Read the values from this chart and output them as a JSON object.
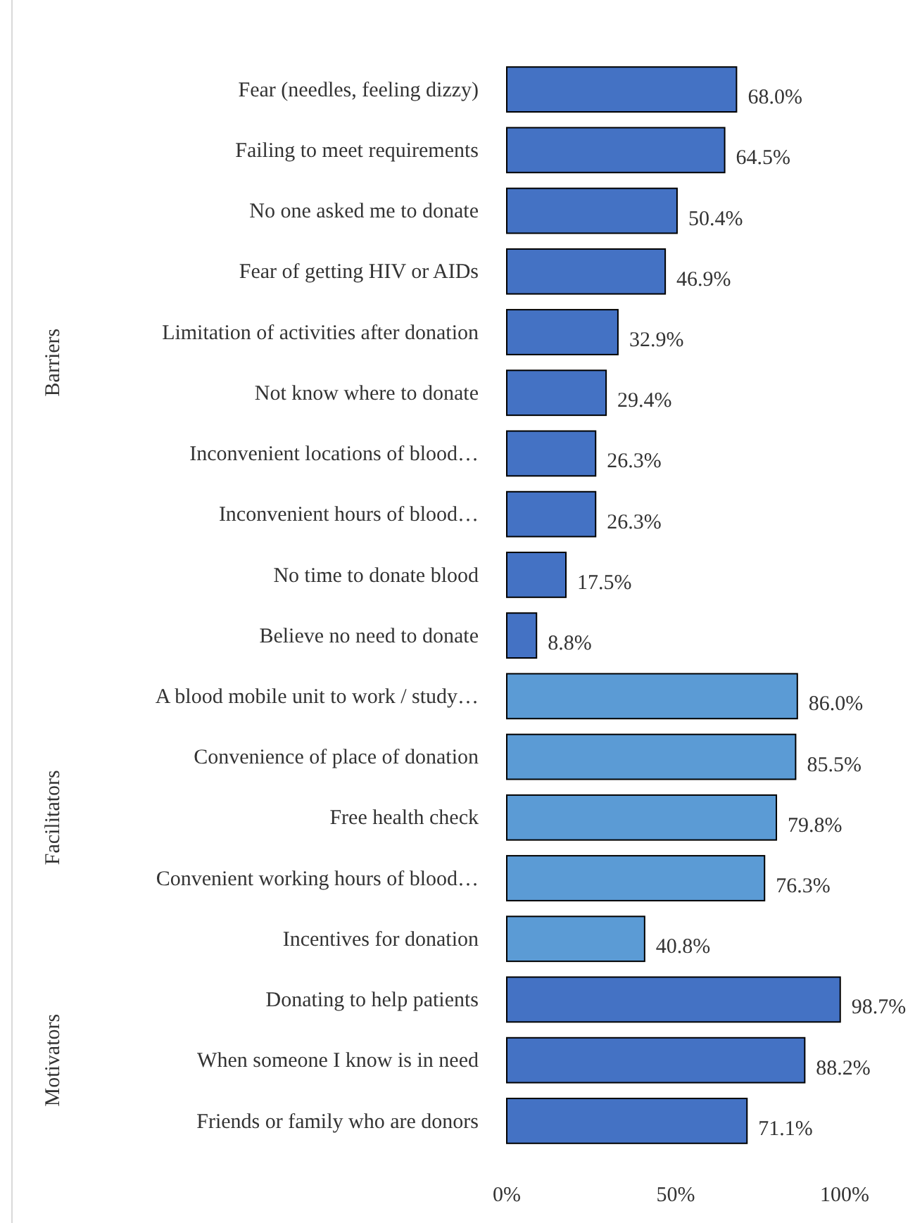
{
  "chart_data": {
    "type": "bar",
    "orientation": "horizontal",
    "categories": [
      "Fear (needles, feeling dizzy)",
      "Failing to meet requirements",
      "No one asked me to donate",
      "Fear of getting HIV or AIDs",
      "Limitation of activities after donation",
      "Not know where to donate",
      "Inconvenient locations of blood…",
      "Inconvenient hours of blood…",
      "No time to donate blood",
      "Believe no need to donate",
      "A blood mobile unit to work / study…",
      "Convenience of place of donation",
      "Free health check",
      "Convenient working hours of blood…",
      "Incentives for donation",
      "Donating to help patients",
      "When someone I know is in need",
      "Friends or family who are donors"
    ],
    "values": [
      68.0,
      64.5,
      50.4,
      46.9,
      32.9,
      29.4,
      26.3,
      26.3,
      17.5,
      8.8,
      86.0,
      85.5,
      79.8,
      76.3,
      40.8,
      98.7,
      88.2,
      71.1
    ],
    "value_labels": [
      "68.0%",
      "64.5%",
      "50.4%",
      "46.9%",
      "32.9%",
      "29.4%",
      "26.3%",
      "26.3%",
      "17.5%",
      "8.8%",
      "86.0%",
      "85.5%",
      "79.8%",
      "76.3%",
      "40.8%",
      "98.7%",
      "88.2%",
      "71.1%"
    ],
    "colors": [
      "#4472c4",
      "#4472c4",
      "#4472c4",
      "#4472c4",
      "#4472c4",
      "#4472c4",
      "#4472c4",
      "#4472c4",
      "#4472c4",
      "#4472c4",
      "#5b9bd5",
      "#5b9bd5",
      "#5b9bd5",
      "#5b9bd5",
      "#5b9bd5",
      "#4472c4",
      "#4472c4",
      "#4472c4"
    ],
    "xlim": [
      0,
      100
    ],
    "xticks": [
      {
        "value": 0,
        "label": "0%"
      },
      {
        "value": 50,
        "label": "50%"
      },
      {
        "value": 100,
        "label": "100%"
      }
    ],
    "annotations": [
      "Barriers",
      "Facilitators",
      "Motivators"
    ],
    "grid": false
  }
}
